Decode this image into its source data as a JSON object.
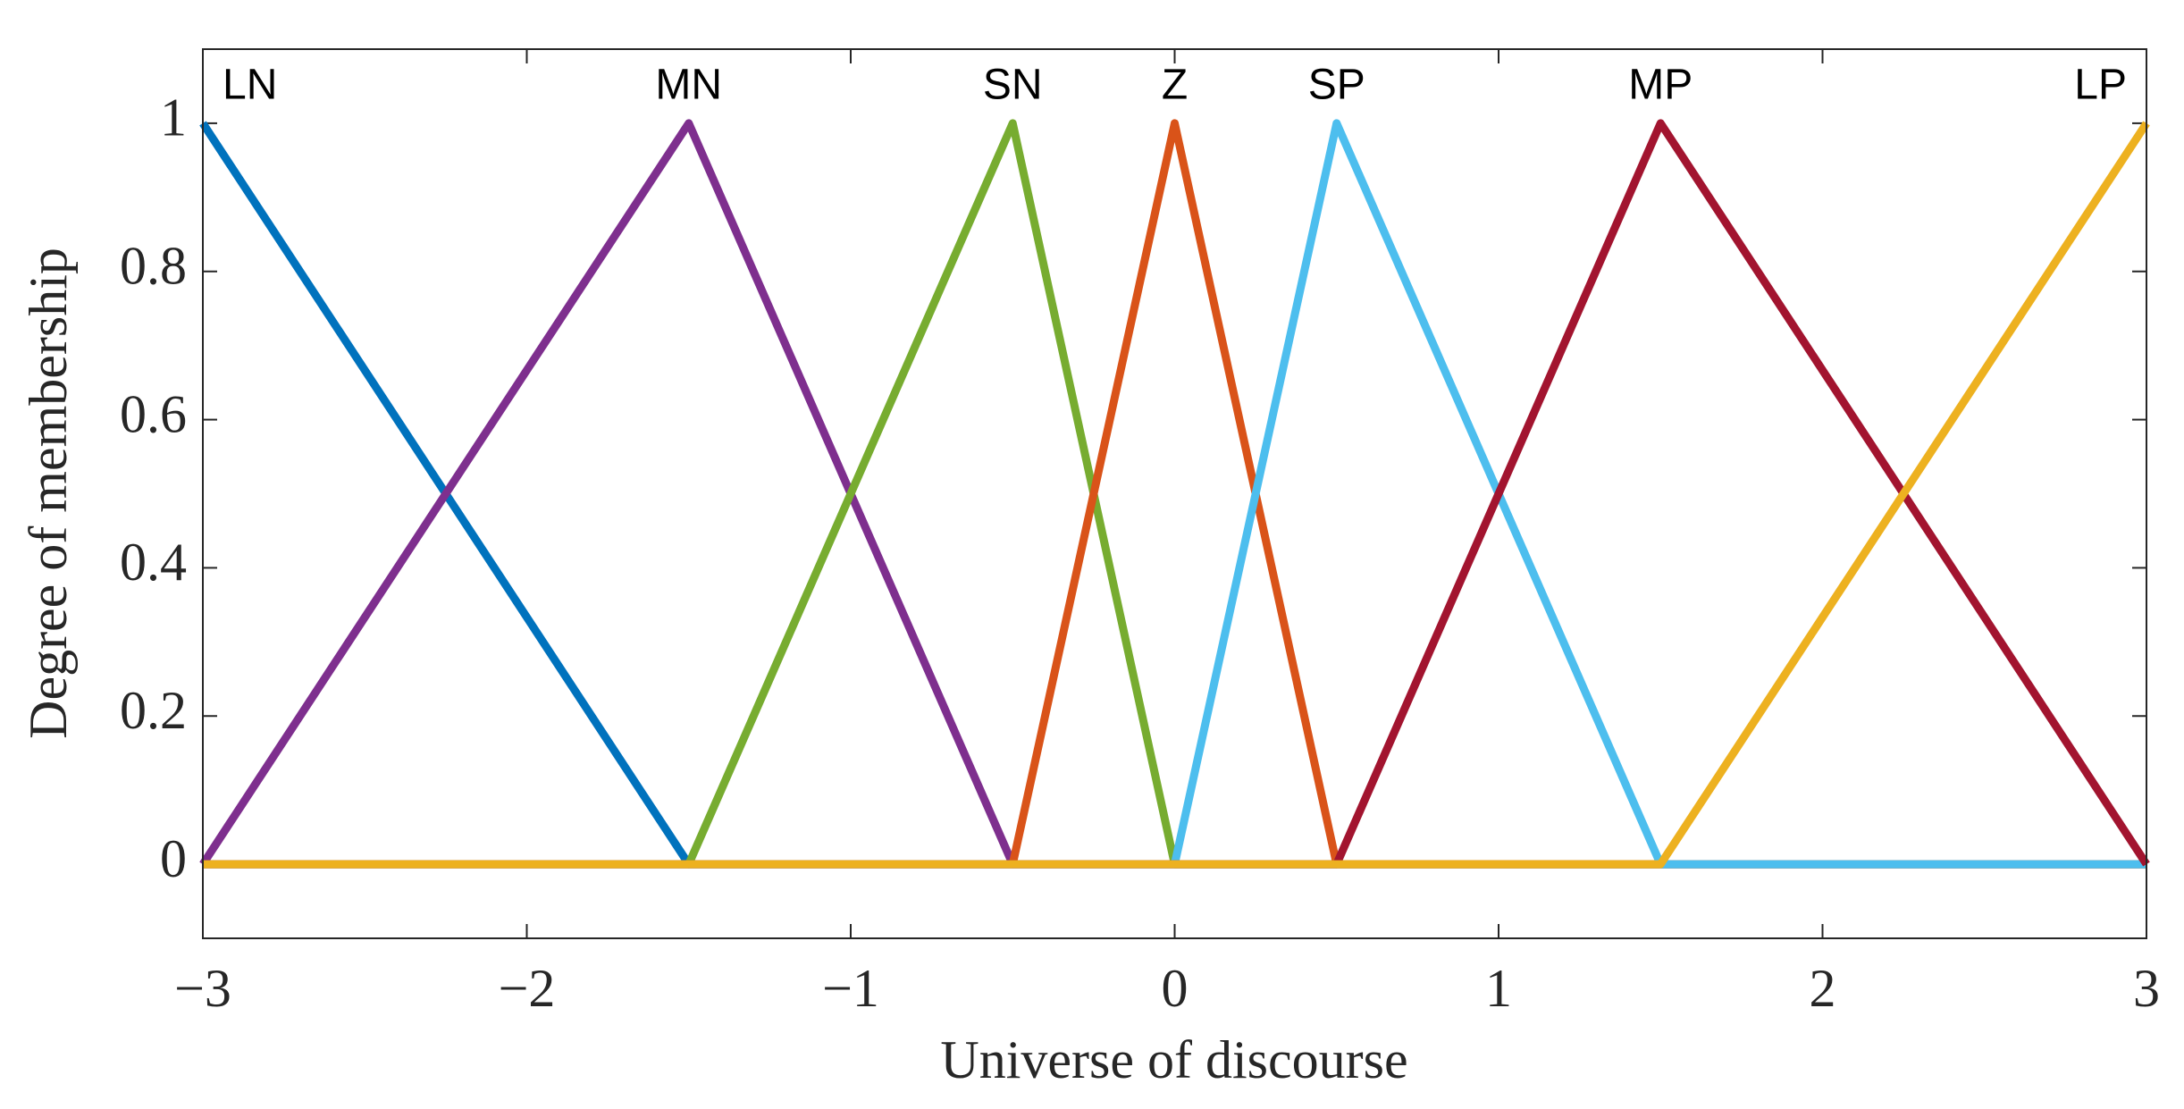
{
  "chart_data": {
    "type": "line",
    "xlabel": "Universe of discourse",
    "ylabel": "Degree of membership",
    "x": [
      -3,
      -1.5,
      -0.5,
      0,
      0.5,
      1.5,
      3
    ],
    "series": [
      {
        "name": "LN",
        "color": "#0072BD",
        "values": [
          1,
          0,
          0,
          0,
          0,
          0,
          0
        ]
      },
      {
        "name": "MN",
        "color": "#7E2F8E",
        "values": [
          0,
          1,
          0,
          0,
          0,
          0,
          0
        ]
      },
      {
        "name": "SN",
        "color": "#77AC30",
        "values": [
          0,
          0,
          1,
          0,
          0,
          0,
          0
        ]
      },
      {
        "name": "Z",
        "color": "#D95319",
        "values": [
          0,
          0,
          0,
          1,
          0,
          0,
          0
        ]
      },
      {
        "name": "SP",
        "color": "#4DBEEE",
        "values": [
          0,
          0,
          0,
          0,
          1,
          0,
          0
        ]
      },
      {
        "name": "MP",
        "color": "#A2142F",
        "values": [
          0,
          0,
          0,
          0,
          0,
          1,
          0
        ]
      },
      {
        "name": "LP",
        "color": "#EDB120",
        "values": [
          0,
          0,
          0,
          0,
          0,
          0,
          1
        ]
      }
    ],
    "xlim": [
      -3,
      3
    ],
    "xticks": [
      {
        "value": -3,
        "label": "−3"
      },
      {
        "value": -2,
        "label": "−2"
      },
      {
        "value": -1,
        "label": "−1"
      },
      0,
      1,
      2,
      3
    ],
    "ylim": [
      -0.1,
      1.1
    ],
    "yticks": [
      0,
      0.2,
      0.4,
      0.6,
      0.8,
      1
    ]
  }
}
